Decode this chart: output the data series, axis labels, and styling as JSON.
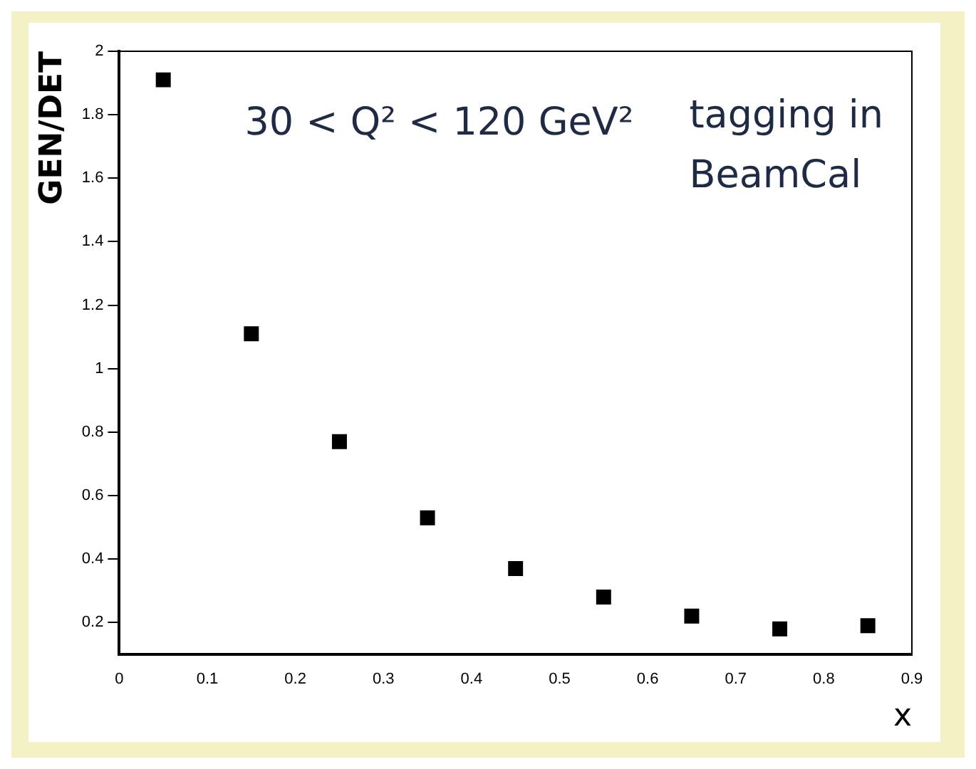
{
  "chart_data": {
    "type": "scatter",
    "xlabel": "x",
    "ylabel": "GEN/DET",
    "annotations": [
      "30 < Q² < 120 GeV²",
      "tagging in\nBeamCal"
    ],
    "x": [
      0.05,
      0.15,
      0.25,
      0.35,
      0.45,
      0.55,
      0.65,
      0.75,
      0.85
    ],
    "series": [
      {
        "color": "#000000",
        "values": [
          1.91,
          1.11,
          0.77,
          0.53,
          0.37,
          0.28,
          0.22,
          0.18,
          0.19
        ]
      }
    ],
    "xlim": [
      0,
      0.9
    ],
    "xticks": [
      0,
      0.1,
      0.2,
      0.3,
      0.4,
      0.5,
      0.6,
      0.7,
      0.8,
      0.9
    ],
    "ylim": [
      0.1,
      2
    ],
    "yticks": [
      0.2,
      0.4,
      0.6,
      0.8,
      1,
      1.2,
      1.4,
      1.6,
      1.8,
      2
    ],
    "marker": "square",
    "grid": false,
    "legend": false
  }
}
